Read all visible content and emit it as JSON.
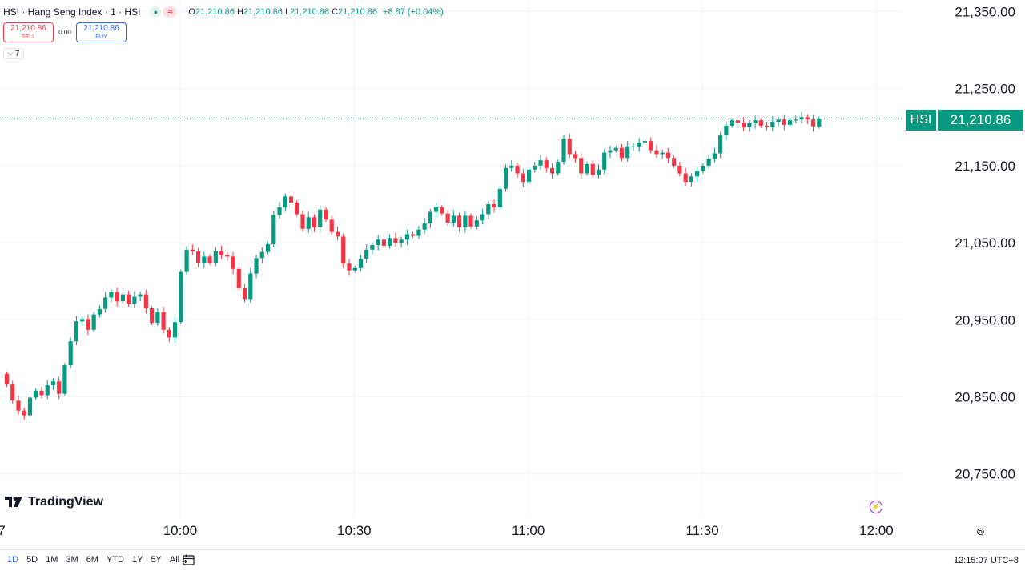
{
  "symbol": {
    "title": "HSI · Hang Seng Index · 1 · HSI",
    "tilde": "≈",
    "ohlc": {
      "o_label": "O",
      "o_value": "21,210.86",
      "h_label": "H",
      "h_value": "21,210.86",
      "l_label": "L",
      "l_value": "21,210.86",
      "c_label": "C",
      "c_value": "21,210.86",
      "change": "+8.87 (+0.04%)"
    }
  },
  "trade": {
    "sell_price": "21,210.86",
    "sell_label": "SELL",
    "spread": "0.00",
    "buy_price": "21,210.86",
    "buy_label": "BUY"
  },
  "indicators_toggle": {
    "count": "7"
  },
  "last_price": {
    "symbol": "HSI",
    "value": "21,210.86"
  },
  "branding": {
    "logo_text": "TradingView"
  },
  "bottom_bar": {
    "ranges": [
      "1D",
      "5D",
      "1M",
      "3M",
      "6M",
      "YTD",
      "1Y",
      "5Y",
      "All"
    ],
    "active_range": "1D",
    "clock": "12:15:07 UTC+8"
  },
  "colors": {
    "up": "#089981",
    "down": "#f23645",
    "accent": "#2962ff"
  },
  "chart_data": {
    "type": "candlestick",
    "y_ticks": [
      "21,350.00",
      "21,250.00",
      "21,150.00",
      "21,050.00",
      "20,950.00",
      "20,850.00",
      "20,750.00"
    ],
    "y_tick_values": [
      21350,
      21250,
      21150,
      21050,
      20950,
      20850,
      20750
    ],
    "ylim": [
      20721,
      21367
    ],
    "x_ticks": [
      "7",
      "10:00",
      "10:30",
      "11:00",
      "11:30",
      "12:00"
    ],
    "x_tick_minutes": [
      0,
      30,
      60,
      90,
      120
    ],
    "x_tick_labels_main": [
      "10:00",
      "10:30",
      "11:00",
      "11:30",
      "12:00"
    ],
    "x_edge_label": "7",
    "last_price": 21210.86,
    "grid": true,
    "closes": [
      20866,
      20845,
      20832,
      20826,
      20849,
      20858,
      20852,
      20865,
      20870,
      20854,
      20891,
      20922,
      20948,
      20951,
      20937,
      20957,
      20964,
      20979,
      20986,
      20974,
      20983,
      20971,
      20980,
      20983,
      20965,
      20946,
      20960,
      20937,
      20927,
      20947,
      21012,
      21041,
      21039,
      21024,
      21032,
      21024,
      21039,
      21034,
      21032,
      21016,
      20991,
      20977,
      21010,
      21030,
      21038,
      21048,
      21086,
      21096,
      21110,
      21102,
      21087,
      21068,
      21083,
      21070,
      21093,
      21080,
      21064,
      21058,
      21023,
      21014,
      21017,
      21029,
      21041,
      21047,
      21054,
      21046,
      21056,
      21050,
      21054,
      21061,
      21059,
      21067,
      21075,
      21090,
      21096,
      21088,
      21076,
      21085,
      21070,
      21085,
      21071,
      21079,
      21087,
      21100,
      21096,
      21120,
      21147,
      21150,
      21140,
      21129,
      21145,
      21150,
      21157,
      21147,
      21140,
      21155,
      21185,
      21165,
      21160,
      21140,
      21152,
      21138,
      21145,
      21167,
      21170,
      21173,
      21160,
      21175,
      21175,
      21180,
      21182,
      21170,
      21165,
      21167,
      21160,
      21150,
      21140,
      21129,
      21136,
      21143,
      21150,
      21159,
      21166,
      21190,
      21202,
      21209,
      21206,
      21200,
      21205,
      21209,
      21202,
      21200,
      21207,
      21210,
      21203,
      21209,
      21210,
      21213,
      21210,
      21201,
      21210.86
    ]
  }
}
